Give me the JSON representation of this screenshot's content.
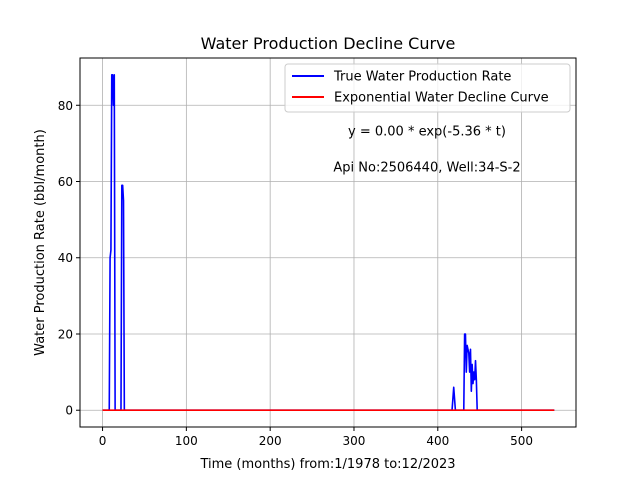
{
  "chart_data": {
    "type": "line",
    "title": "Water Production Decline Curve",
    "xlabel": "Time (months) from:1/1978 to:12/2023",
    "ylabel": "Water Production Rate (bbl/month)",
    "xlim": [
      -26.9,
      564.9
    ],
    "ylim": [
      -4.4,
      92.4
    ],
    "xticks": [
      0,
      100,
      200,
      300,
      400,
      500
    ],
    "yticks": [
      0,
      20,
      40,
      60,
      80
    ],
    "grid": true,
    "legend_position": "top-right",
    "annotations": [
      "y = 0.00 * exp(-5.36 * t)",
      "Api No:2506440, Well:34-S-2"
    ],
    "series": [
      {
        "name": "True Water Production Rate",
        "color": "#0000ff",
        "x": [
          0,
          8,
          9,
          10,
          11,
          12,
          13,
          14,
          15,
          16,
          17,
          18,
          19,
          20,
          21,
          22,
          23,
          24,
          25,
          26,
          27,
          30,
          100,
          200,
          300,
          400,
          417,
          418,
          419,
          420,
          421,
          422,
          423,
          430,
          431,
          432,
          433,
          434,
          435,
          436,
          437,
          438,
          439,
          440,
          441,
          442,
          443,
          444,
          445,
          446,
          447,
          448,
          449,
          450,
          451,
          455,
          500,
          539
        ],
        "y": [
          0,
          0,
          40,
          42,
          88,
          88,
          80,
          88,
          0,
          0,
          0,
          0,
          0,
          0,
          0,
          0,
          59,
          59,
          55,
          0,
          0,
          0,
          0,
          0,
          0,
          0,
          0,
          3,
          6,
          3,
          0,
          0,
          0,
          0,
          0,
          20,
          20,
          10,
          17,
          16,
          15,
          10,
          16,
          5,
          12,
          7,
          10,
          8,
          13,
          8,
          0,
          0,
          0,
          0,
          0,
          0,
          0,
          0
        ]
      },
      {
        "name": "Exponential Water Decline Curve",
        "color": "#ff0000",
        "x": [
          0,
          100,
          200,
          300,
          400,
          500,
          539
        ],
        "y": [
          0,
          0,
          0,
          0,
          0,
          0,
          0
        ]
      }
    ]
  }
}
